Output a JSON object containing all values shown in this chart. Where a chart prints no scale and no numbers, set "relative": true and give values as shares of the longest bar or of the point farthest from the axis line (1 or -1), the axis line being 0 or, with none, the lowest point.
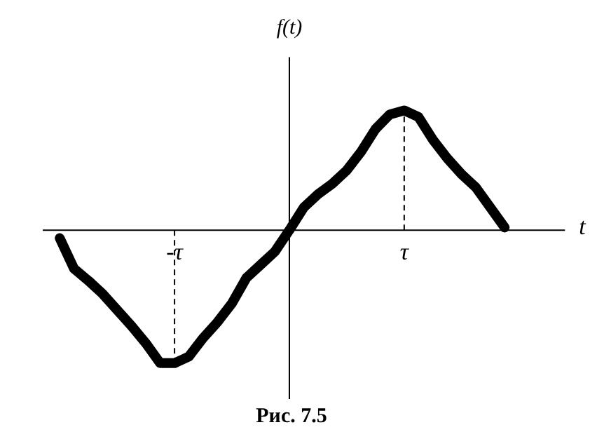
{
  "chart_data": {
    "type": "line",
    "relative": true,
    "xlabel": "t",
    "ylabel": "f(t)",
    "annotations": [
      "Рис. 7.5"
    ],
    "categories": [
      null,
      null,
      null,
      null,
      null,
      null,
      null,
      null,
      "-τ",
      null,
      null,
      null,
      null,
      null,
      null,
      null,
      null,
      null,
      null,
      null,
      null,
      null,
      null,
      null,
      "τ",
      null,
      null,
      null,
      null,
      null,
      null,
      null
    ],
    "series": [
      {
        "color": "#000000",
        "values": [
          -0.06,
          -0.29,
          -0.38,
          -0.48,
          -0.6,
          -0.72,
          -0.85,
          -1.0,
          -1.0,
          -0.95,
          -0.81,
          -0.69,
          -0.55,
          -0.36,
          -0.26,
          -0.16,
          0,
          0.17,
          0.27,
          0.35,
          0.45,
          0.59,
          0.76,
          0.87,
          0.9,
          0.85,
          0.68,
          0.54,
          0.42,
          0.32,
          0.17,
          0.02
        ]
      }
    ],
    "ref_lines": [
      {
        "axis": "x",
        "value": "-τ",
        "line_style": "dashed"
      },
      {
        "axis": "x",
        "value": "τ",
        "line_style": "dashed"
      }
    ],
    "line_style": "solid"
  }
}
